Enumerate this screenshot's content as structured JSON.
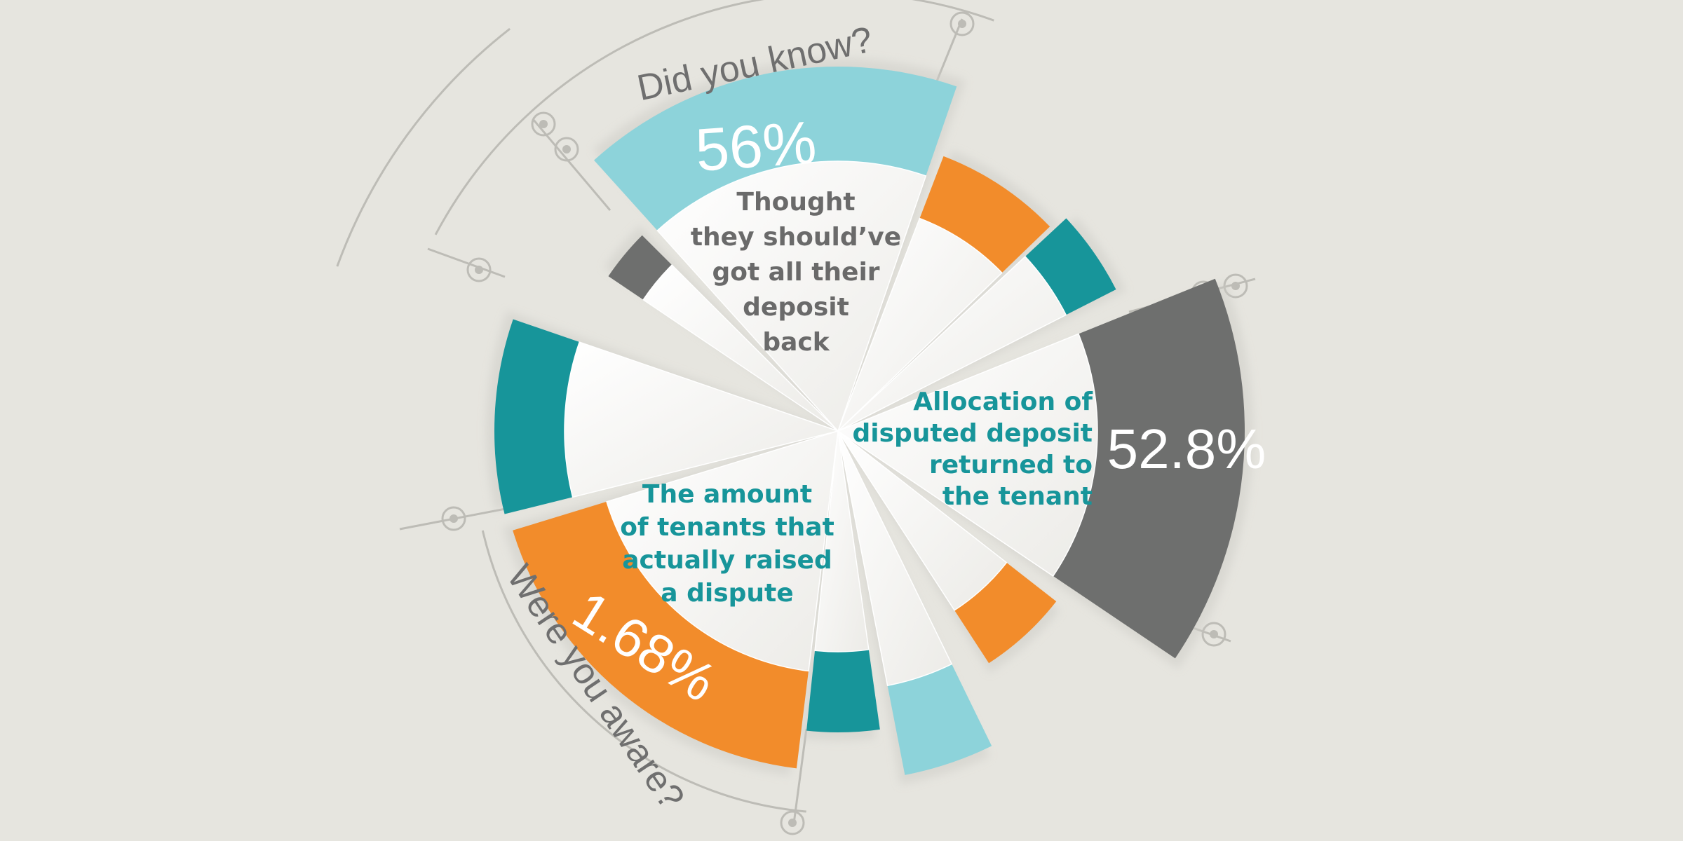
{
  "chart_data": {
    "type": "radial-bar",
    "segments": [
      {
        "color": "#8dd3da",
        "sweep": 0
      },
      {
        "color": "#f28c2b",
        "sweep": 0
      },
      {
        "color": "#17959a",
        "sweep": 0
      },
      {
        "color": "#6e6f6e",
        "sweep": 0
      },
      {
        "color": "#f28c2b",
        "sweep": 0
      },
      {
        "color": "#8dd3da",
        "sweep": 0
      },
      {
        "color": "#17959a",
        "sweep": 0
      },
      {
        "color": "#f28c2b",
        "sweep": 0
      },
      {
        "color": "#17959a",
        "sweep": 0
      },
      {
        "color": "#6e6f6e",
        "sweep": 0
      }
    ],
    "highlights": [
      {
        "value": "56%",
        "label_lines": [
          "Thought",
          "they should’ve",
          "got all their",
          "deposit",
          "back"
        ]
      },
      {
        "value": "52.8%",
        "label_lines": [
          "Allocation of",
          "disputed deposit",
          "returned to",
          "the tenant"
        ]
      },
      {
        "value": "1.68%",
        "label_lines": [
          "The amount",
          "of tenants that",
          "actually raised",
          "a dispute"
        ]
      }
    ],
    "headings": {
      "top": "Did you know?",
      "bottom": "Were you aware?"
    }
  },
  "colors": {
    "background": "#e6e5df",
    "light_blue": "#8dd3da",
    "teal": "#17959a",
    "orange": "#f28c2b",
    "dark_gray": "#6e6f6e",
    "text_gray": "#6f6f6f",
    "wedge_fill": "#f4f4f2"
  }
}
